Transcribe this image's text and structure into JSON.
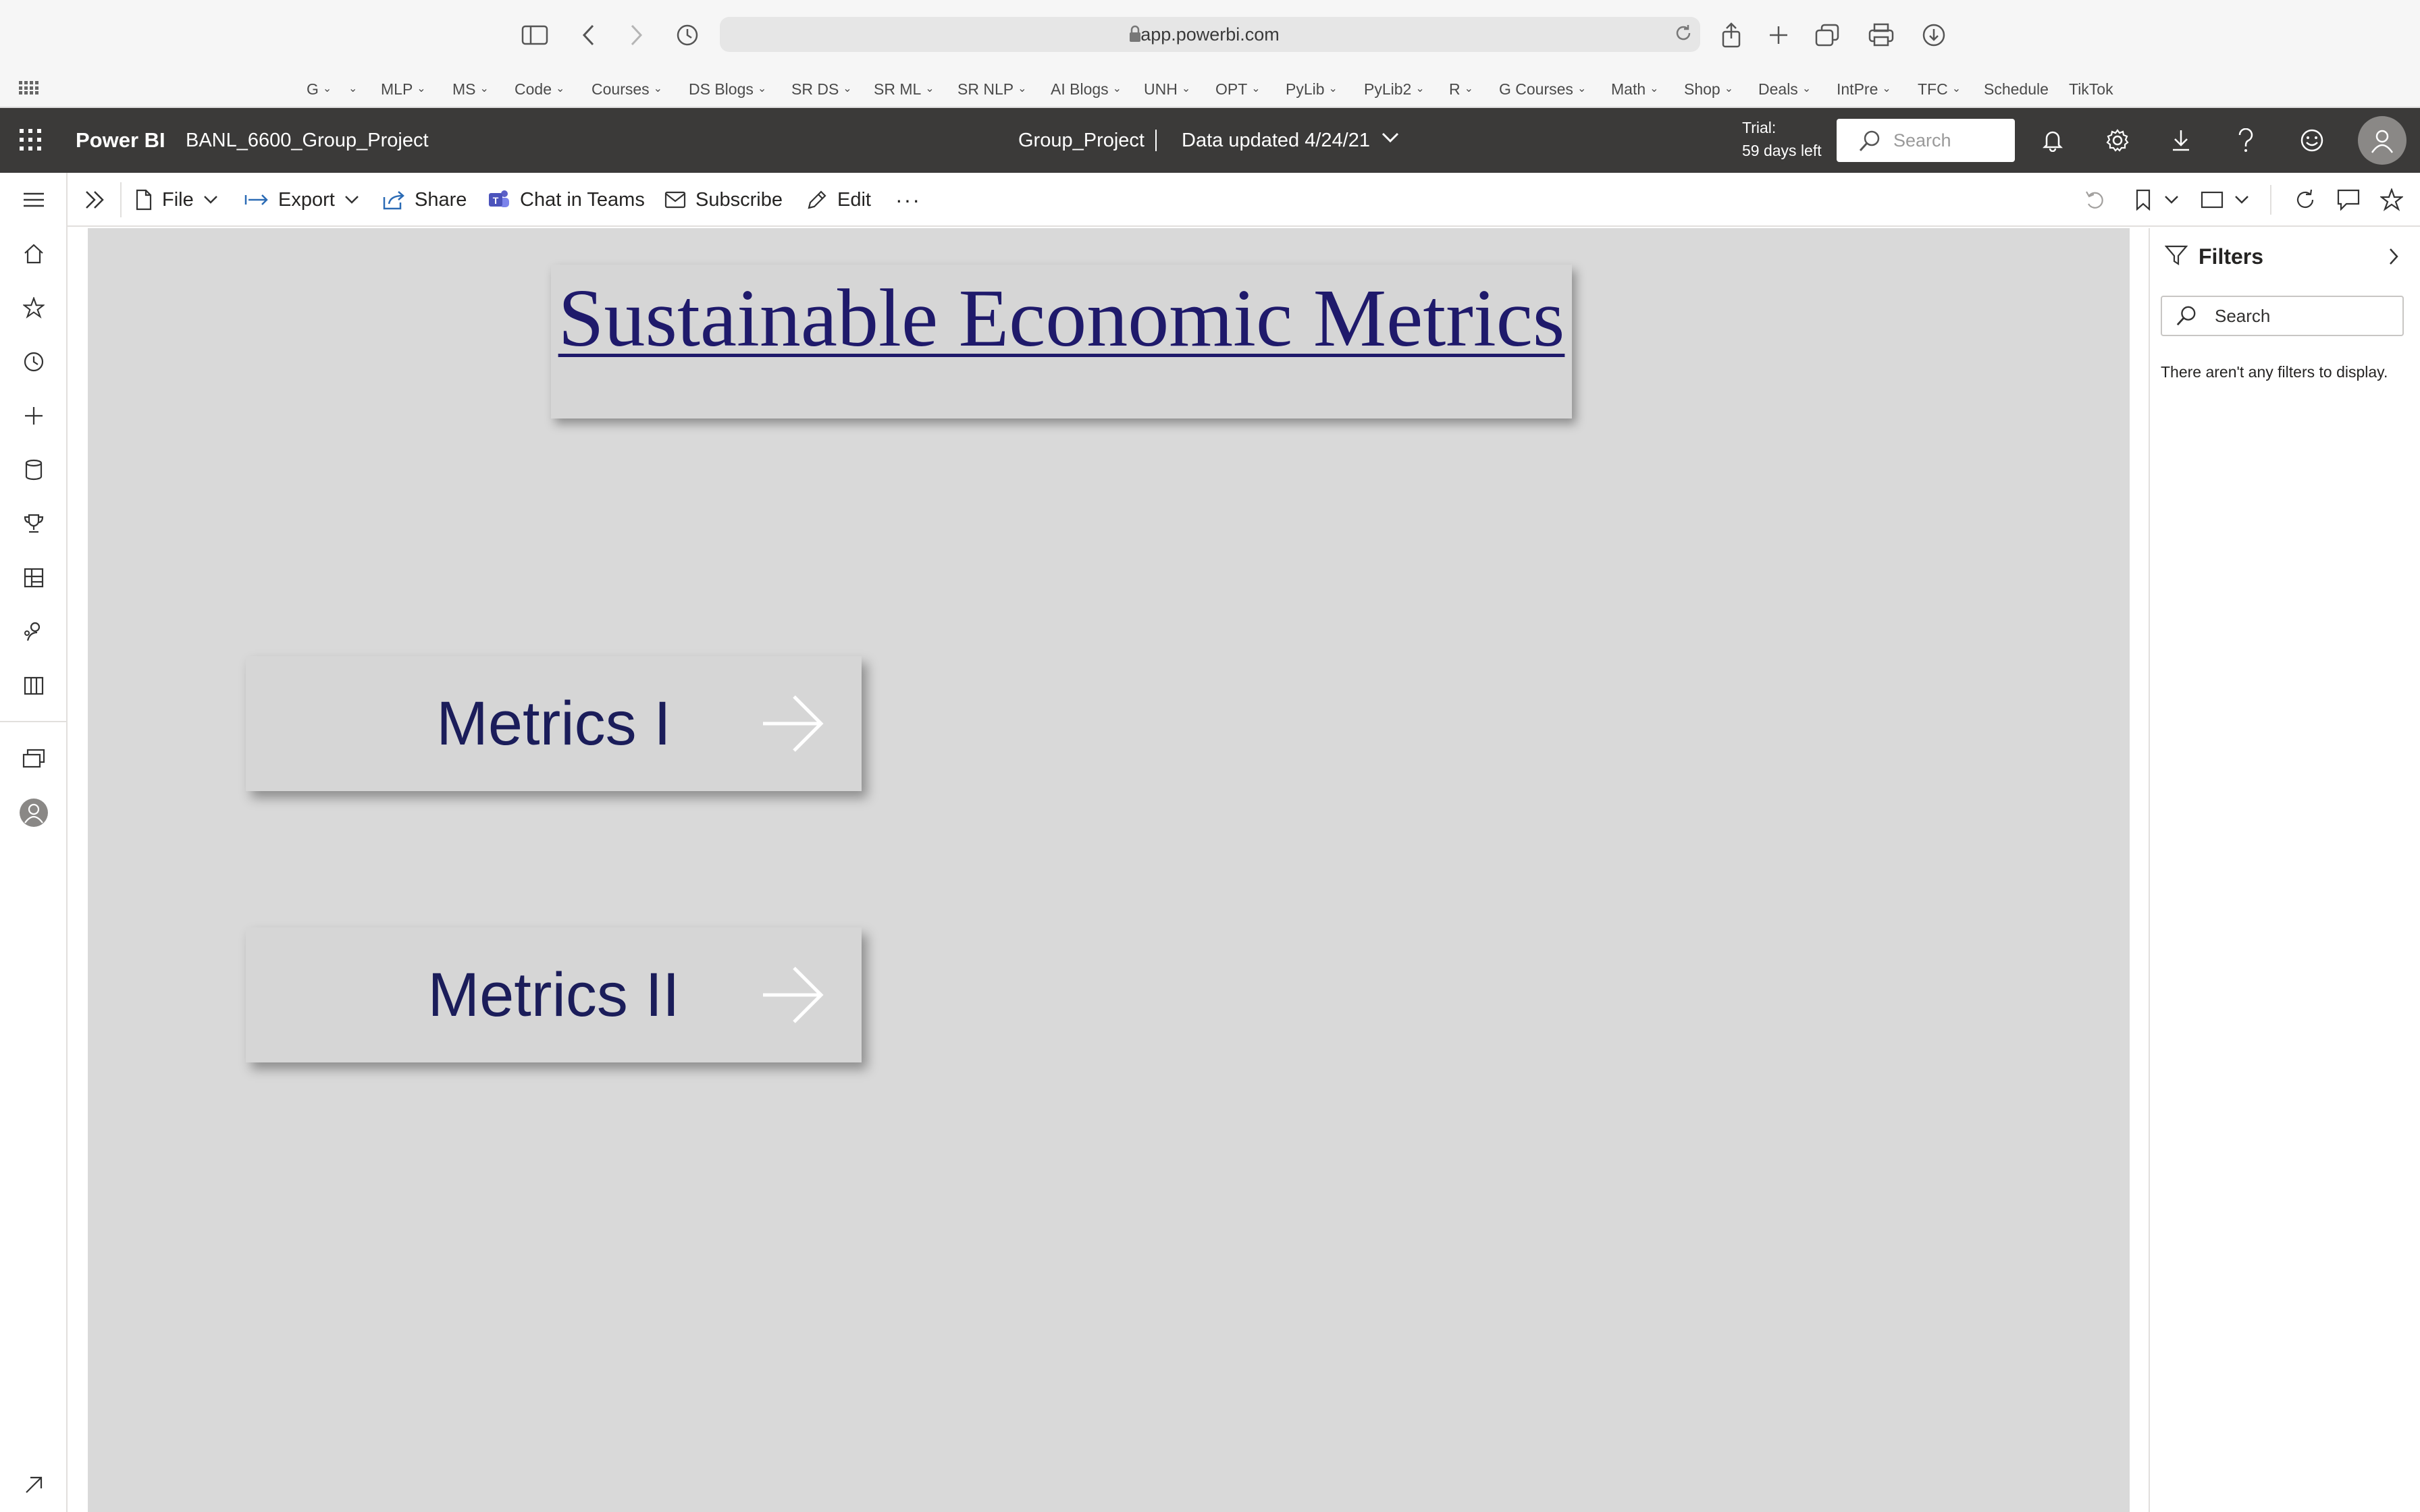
{
  "browser": {
    "url": "app.powerbi.com",
    "bookmarks": [
      {
        "label": "G",
        "dropdown": true
      },
      {
        "label": "",
        "dropdown": true
      },
      {
        "label": "MLP",
        "dropdown": true
      },
      {
        "label": "MS",
        "dropdown": true
      },
      {
        "label": "Code",
        "dropdown": true
      },
      {
        "label": "Courses",
        "dropdown": true
      },
      {
        "label": "DS Blogs",
        "dropdown": true
      },
      {
        "label": "SR DS",
        "dropdown": true
      },
      {
        "label": "SR ML",
        "dropdown": true
      },
      {
        "label": "SR NLP",
        "dropdown": true
      },
      {
        "label": "AI Blogs",
        "dropdown": true
      },
      {
        "label": "UNH",
        "dropdown": true
      },
      {
        "label": "OPT",
        "dropdown": true
      },
      {
        "label": "PyLib",
        "dropdown": true
      },
      {
        "label": "PyLib2",
        "dropdown": true
      },
      {
        "label": "R",
        "dropdown": true
      },
      {
        "label": "G Courses",
        "dropdown": true
      },
      {
        "label": "Math",
        "dropdown": true
      },
      {
        "label": "Shop",
        "dropdown": true
      },
      {
        "label": "Deals",
        "dropdown": true
      },
      {
        "label": "IntPre",
        "dropdown": true
      },
      {
        "label": "TFC",
        "dropdown": true
      },
      {
        "label": "Schedule",
        "dropdown": false
      },
      {
        "label": "TikTok",
        "dropdown": false
      }
    ]
  },
  "header": {
    "brand": "Power BI",
    "workspace": "BANL_6600_Group_Project",
    "report_name": "Group_Project",
    "separator": "|",
    "data_updated": "Data updated 4/24/21",
    "trial_line1": "Trial:",
    "trial_line2": "59 days left",
    "search_placeholder": "Search"
  },
  "command_bar": {
    "file": "File",
    "export": "Export",
    "share": "Share",
    "chat_in_teams": "Chat in Teams",
    "subscribe": "Subscribe",
    "edit": "Edit",
    "more": "···"
  },
  "canvas": {
    "title": "Sustainable Economic Metrics",
    "buttons": [
      {
        "label": "Metrics I"
      },
      {
        "label": "Metrics II"
      }
    ]
  },
  "filters": {
    "title": "Filters",
    "search_placeholder": "Search",
    "empty_message": "There aren't any filters to display."
  },
  "colors": {
    "header_bg": "#3b3a39",
    "canvas_bg": "#d9d9d9",
    "title_text": "#1f1a6b",
    "button_text": "#1b1d5a"
  }
}
